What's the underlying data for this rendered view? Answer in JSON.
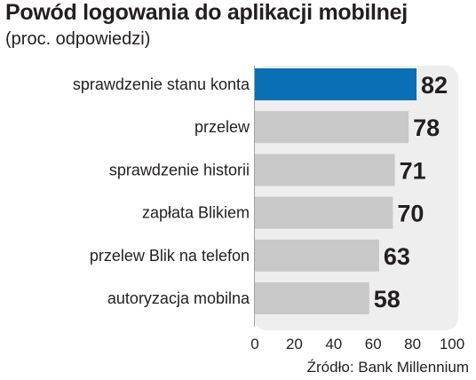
{
  "chart_data": {
    "type": "bar",
    "orientation": "horizontal",
    "title": "Powód logowania do aplikacji mobilnej",
    "subtitle": "(proc. odpowiedzi)",
    "source": "Źródło: Bank Millennium",
    "categories": [
      "sprawdzenie stanu konta",
      "przelew",
      "sprawdzenie historii",
      "zapłata Blikiem",
      "przelew Blik na telefon",
      "autoryzacja mobilna"
    ],
    "values": [
      82,
      78,
      71,
      70,
      63,
      58
    ],
    "value_labels": [
      "82",
      "78",
      "71",
      "70",
      "63",
      "58"
    ],
    "xlim": [
      0,
      100
    ],
    "xticks": [
      "0",
      "20",
      "40",
      "60",
      "80",
      "100"
    ],
    "grid": false,
    "legend": "none",
    "colors": {
      "highlight": "#0a6fb5",
      "bar": "#c8c8c8",
      "panel": "#eeeeee",
      "text": "#231f20"
    }
  }
}
